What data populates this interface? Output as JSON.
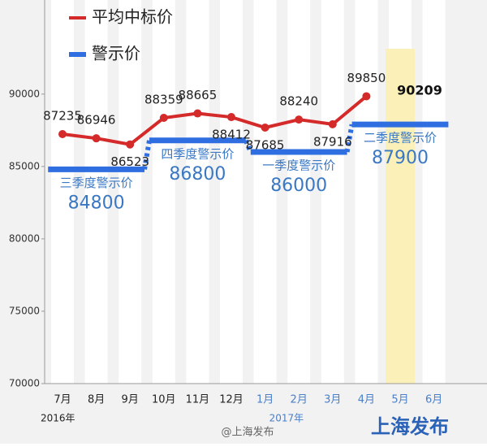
{
  "chart_data": {
    "type": "line",
    "categories": [
      "7月",
      "8月",
      "9月",
      "10月",
      "11月",
      "12月",
      "1月",
      "2月",
      "3月",
      "4月",
      "5月",
      "6月"
    ],
    "series": [
      {
        "name": "平均中标价",
        "color": "#d42a2a",
        "values": [
          87235,
          86946,
          86523,
          88359,
          88665,
          88412,
          87685,
          88240,
          87916,
          89850,
          null,
          null
        ]
      }
    ],
    "warning": {
      "name": "警示价",
      "color": "#2f6ee0",
      "segments": [
        {
          "name": "三季度警示价",
          "value": 84800,
          "categories": [
            "7月",
            "8月",
            "9月"
          ]
        },
        {
          "name": "四季度警示价",
          "value": 86800,
          "categories": [
            "10月",
            "11月",
            "12月"
          ]
        },
        {
          "name": "一季度警示价",
          "value": 86000,
          "categories": [
            "1月",
            "2月",
            "3月"
          ]
        },
        {
          "name": "二季度警示价",
          "value": 87900,
          "categories": [
            "4月",
            "5月",
            "6月"
          ]
        }
      ]
    },
    "highlight": {
      "category": "5月",
      "value": 90209
    },
    "years": [
      {
        "label": "2016年",
        "from": "7月"
      },
      {
        "label": "2017年",
        "from": "1月"
      }
    ],
    "ylim": [
      70000,
      96500
    ],
    "yticks": [
      70000,
      75000,
      80000,
      85000,
      90000
    ],
    "credit": "@上海发布",
    "watermark": "上海发布"
  }
}
